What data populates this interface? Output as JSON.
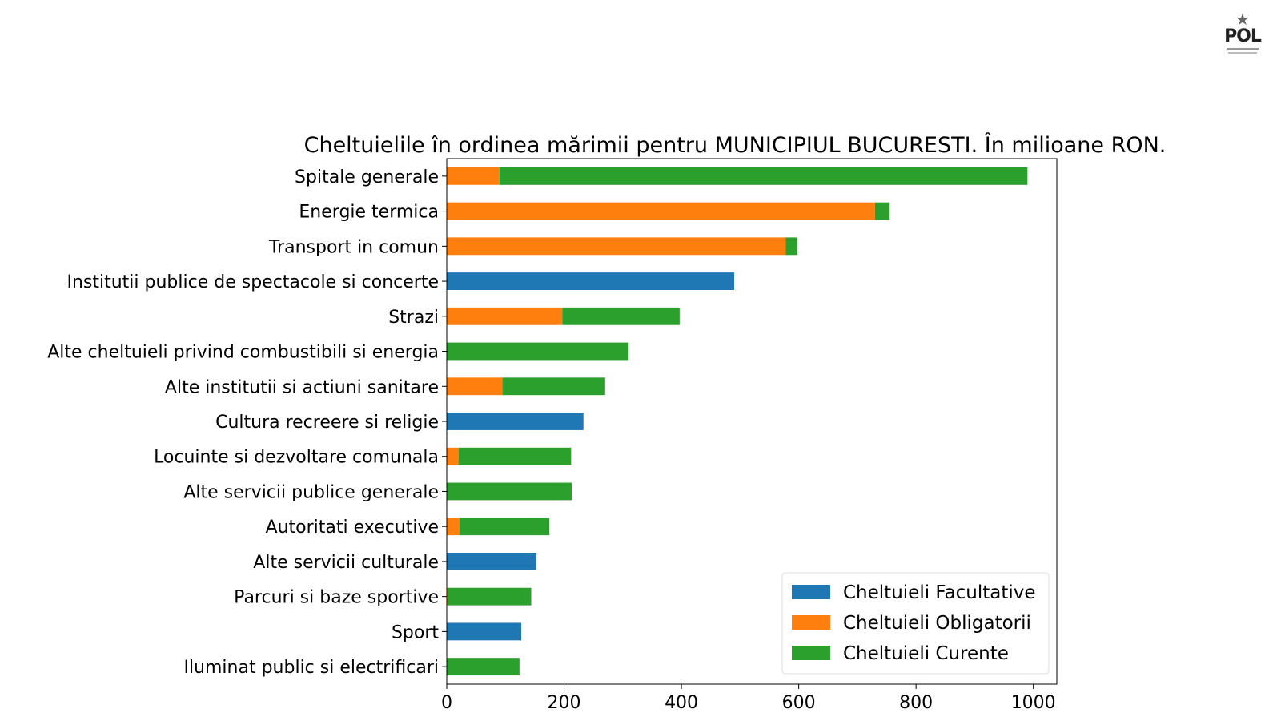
{
  "logo": {
    "text": "POL"
  },
  "colors": {
    "Facultative": "#1f77b4",
    "Obligatorii": "#ff7f0e",
    "Curente": "#2ca02c"
  },
  "chart_data": {
    "type": "bar",
    "orientation": "horizontal",
    "stacked": true,
    "title": "Cheltuielile în ordinea mărimii pentru MUNICIPIUL BUCURESTI. În milioane RON.",
    "xlabel": "",
    "ylabel": "",
    "xlim": [
      0,
      1040
    ],
    "xticks": [
      0,
      200,
      400,
      600,
      800,
      1000
    ],
    "grid": false,
    "legend_position": "lower-right",
    "categories": [
      "Spitale generale",
      "Energie termica",
      "Transport in comun",
      "Institutii publice de spectacole si concerte",
      "Strazi",
      "Alte cheltuieli privind combustibili si energia",
      "Alte institutii si actiuni sanitare",
      "Cultura recreere si religie",
      "Locuinte si dezvoltare comunala",
      "Alte servicii publice generale",
      "Autoritati executive",
      "Alte servicii culturale",
      "Parcuri si baze sportive",
      "Sport",
      "Iluminat public si electrificari"
    ],
    "series": [
      {
        "name": "Cheltuieli Facultative",
        "color": "#1f77b4",
        "values": [
          0,
          0,
          0,
          490,
          0,
          0,
          0,
          233,
          0,
          0,
          0,
          153,
          0,
          127,
          0
        ]
      },
      {
        "name": "Cheltuieli Obligatorii",
        "color": "#ff7f0e",
        "values": [
          90,
          730,
          578,
          0,
          197,
          0,
          95,
          0,
          20,
          0,
          22,
          0,
          2,
          0,
          0
        ]
      },
      {
        "name": "Cheltuieli Curente",
        "color": "#2ca02c",
        "values": [
          900,
          25,
          20,
          0,
          200,
          310,
          175,
          0,
          192,
          213,
          153,
          0,
          142,
          0,
          124
        ]
      }
    ]
  }
}
